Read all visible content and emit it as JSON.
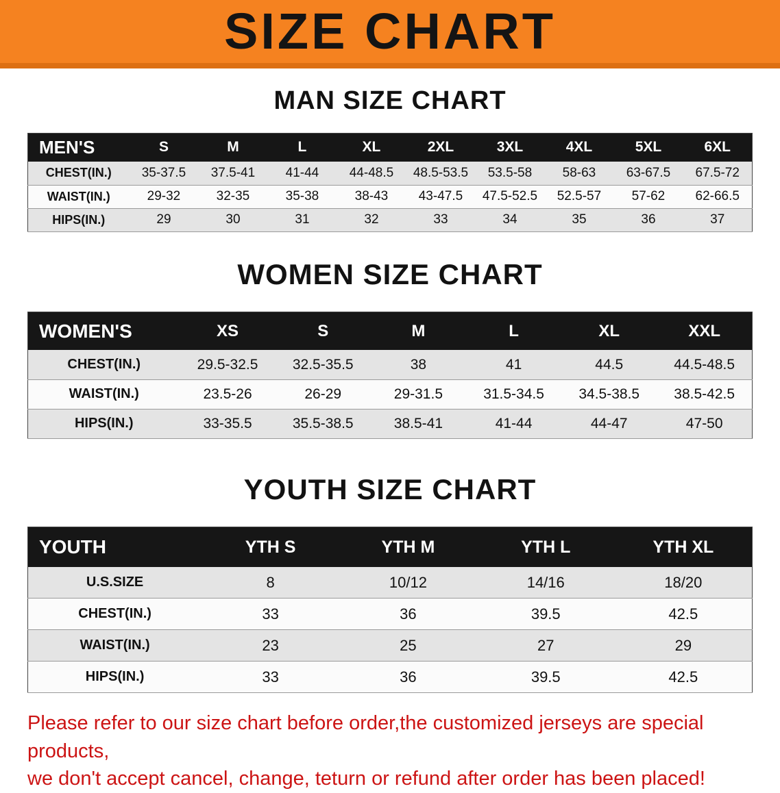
{
  "banner": {
    "title": "SIZE CHART"
  },
  "colors": {
    "banner_bg": "#f58220",
    "banner_edge": "#dd6f12",
    "table_header_bg": "#161616",
    "row_shaded": "#e4e4e4",
    "row_plain": "#fbfbfb",
    "note_red": "#cc1414"
  },
  "sections": [
    {
      "heading": "MAN SIZE CHART",
      "table": {
        "columns": [
          "MEN'S",
          "S",
          "M",
          "L",
          "XL",
          "2XL",
          "3XL",
          "4XL",
          "5XL",
          "6XL"
        ],
        "rows": [
          [
            "CHEST(IN.)",
            "35-37.5",
            "37.5-41",
            "41-44",
            "44-48.5",
            "48.5-53.5",
            "53.5-58",
            "58-63",
            "63-67.5",
            "67.5-72"
          ],
          [
            "WAIST(IN.)",
            "29-32",
            "32-35",
            "35-38",
            "38-43",
            "43-47.5",
            "47.5-52.5",
            "52.5-57",
            "57-62",
            "62-66.5"
          ],
          [
            "HIPS(IN.)",
            "29",
            "30",
            "31",
            "32",
            "33",
            "34",
            "35",
            "36",
            "37"
          ]
        ]
      }
    },
    {
      "heading": "WOMEN SIZE CHART",
      "table": {
        "columns": [
          "WOMEN'S",
          "XS",
          "S",
          "M",
          "L",
          "XL",
          "XXL"
        ],
        "rows": [
          [
            "CHEST(IN.)",
            "29.5-32.5",
            "32.5-35.5",
            "38",
            "41",
            "44.5",
            "44.5-48.5"
          ],
          [
            "WAIST(IN.)",
            "23.5-26",
            "26-29",
            "29-31.5",
            "31.5-34.5",
            "34.5-38.5",
            "38.5-42.5"
          ],
          [
            "HIPS(IN.)",
            "33-35.5",
            "35.5-38.5",
            "38.5-41",
            "41-44",
            "44-47",
            "47-50"
          ]
        ]
      }
    },
    {
      "heading": "YOUTH SIZE CHART",
      "table": {
        "columns": [
          "YOUTH",
          "YTH S",
          "YTH M",
          "YTH L",
          "YTH XL"
        ],
        "rows": [
          [
            "U.S.SIZE",
            "8",
            "10/12",
            "14/16",
            "18/20"
          ],
          [
            "CHEST(IN.)",
            "33",
            "36",
            "39.5",
            "42.5"
          ],
          [
            "WAIST(IN.)",
            "23",
            "25",
            "27",
            "29"
          ],
          [
            "HIPS(IN.)",
            "33",
            "36",
            "39.5",
            "42.5"
          ]
        ]
      }
    }
  ],
  "note": {
    "line1": "Please refer to our size chart before order,the customized jerseys are special products,",
    "line2": "we don't accept cancel, change, teturn or refund after order has been placed!"
  }
}
